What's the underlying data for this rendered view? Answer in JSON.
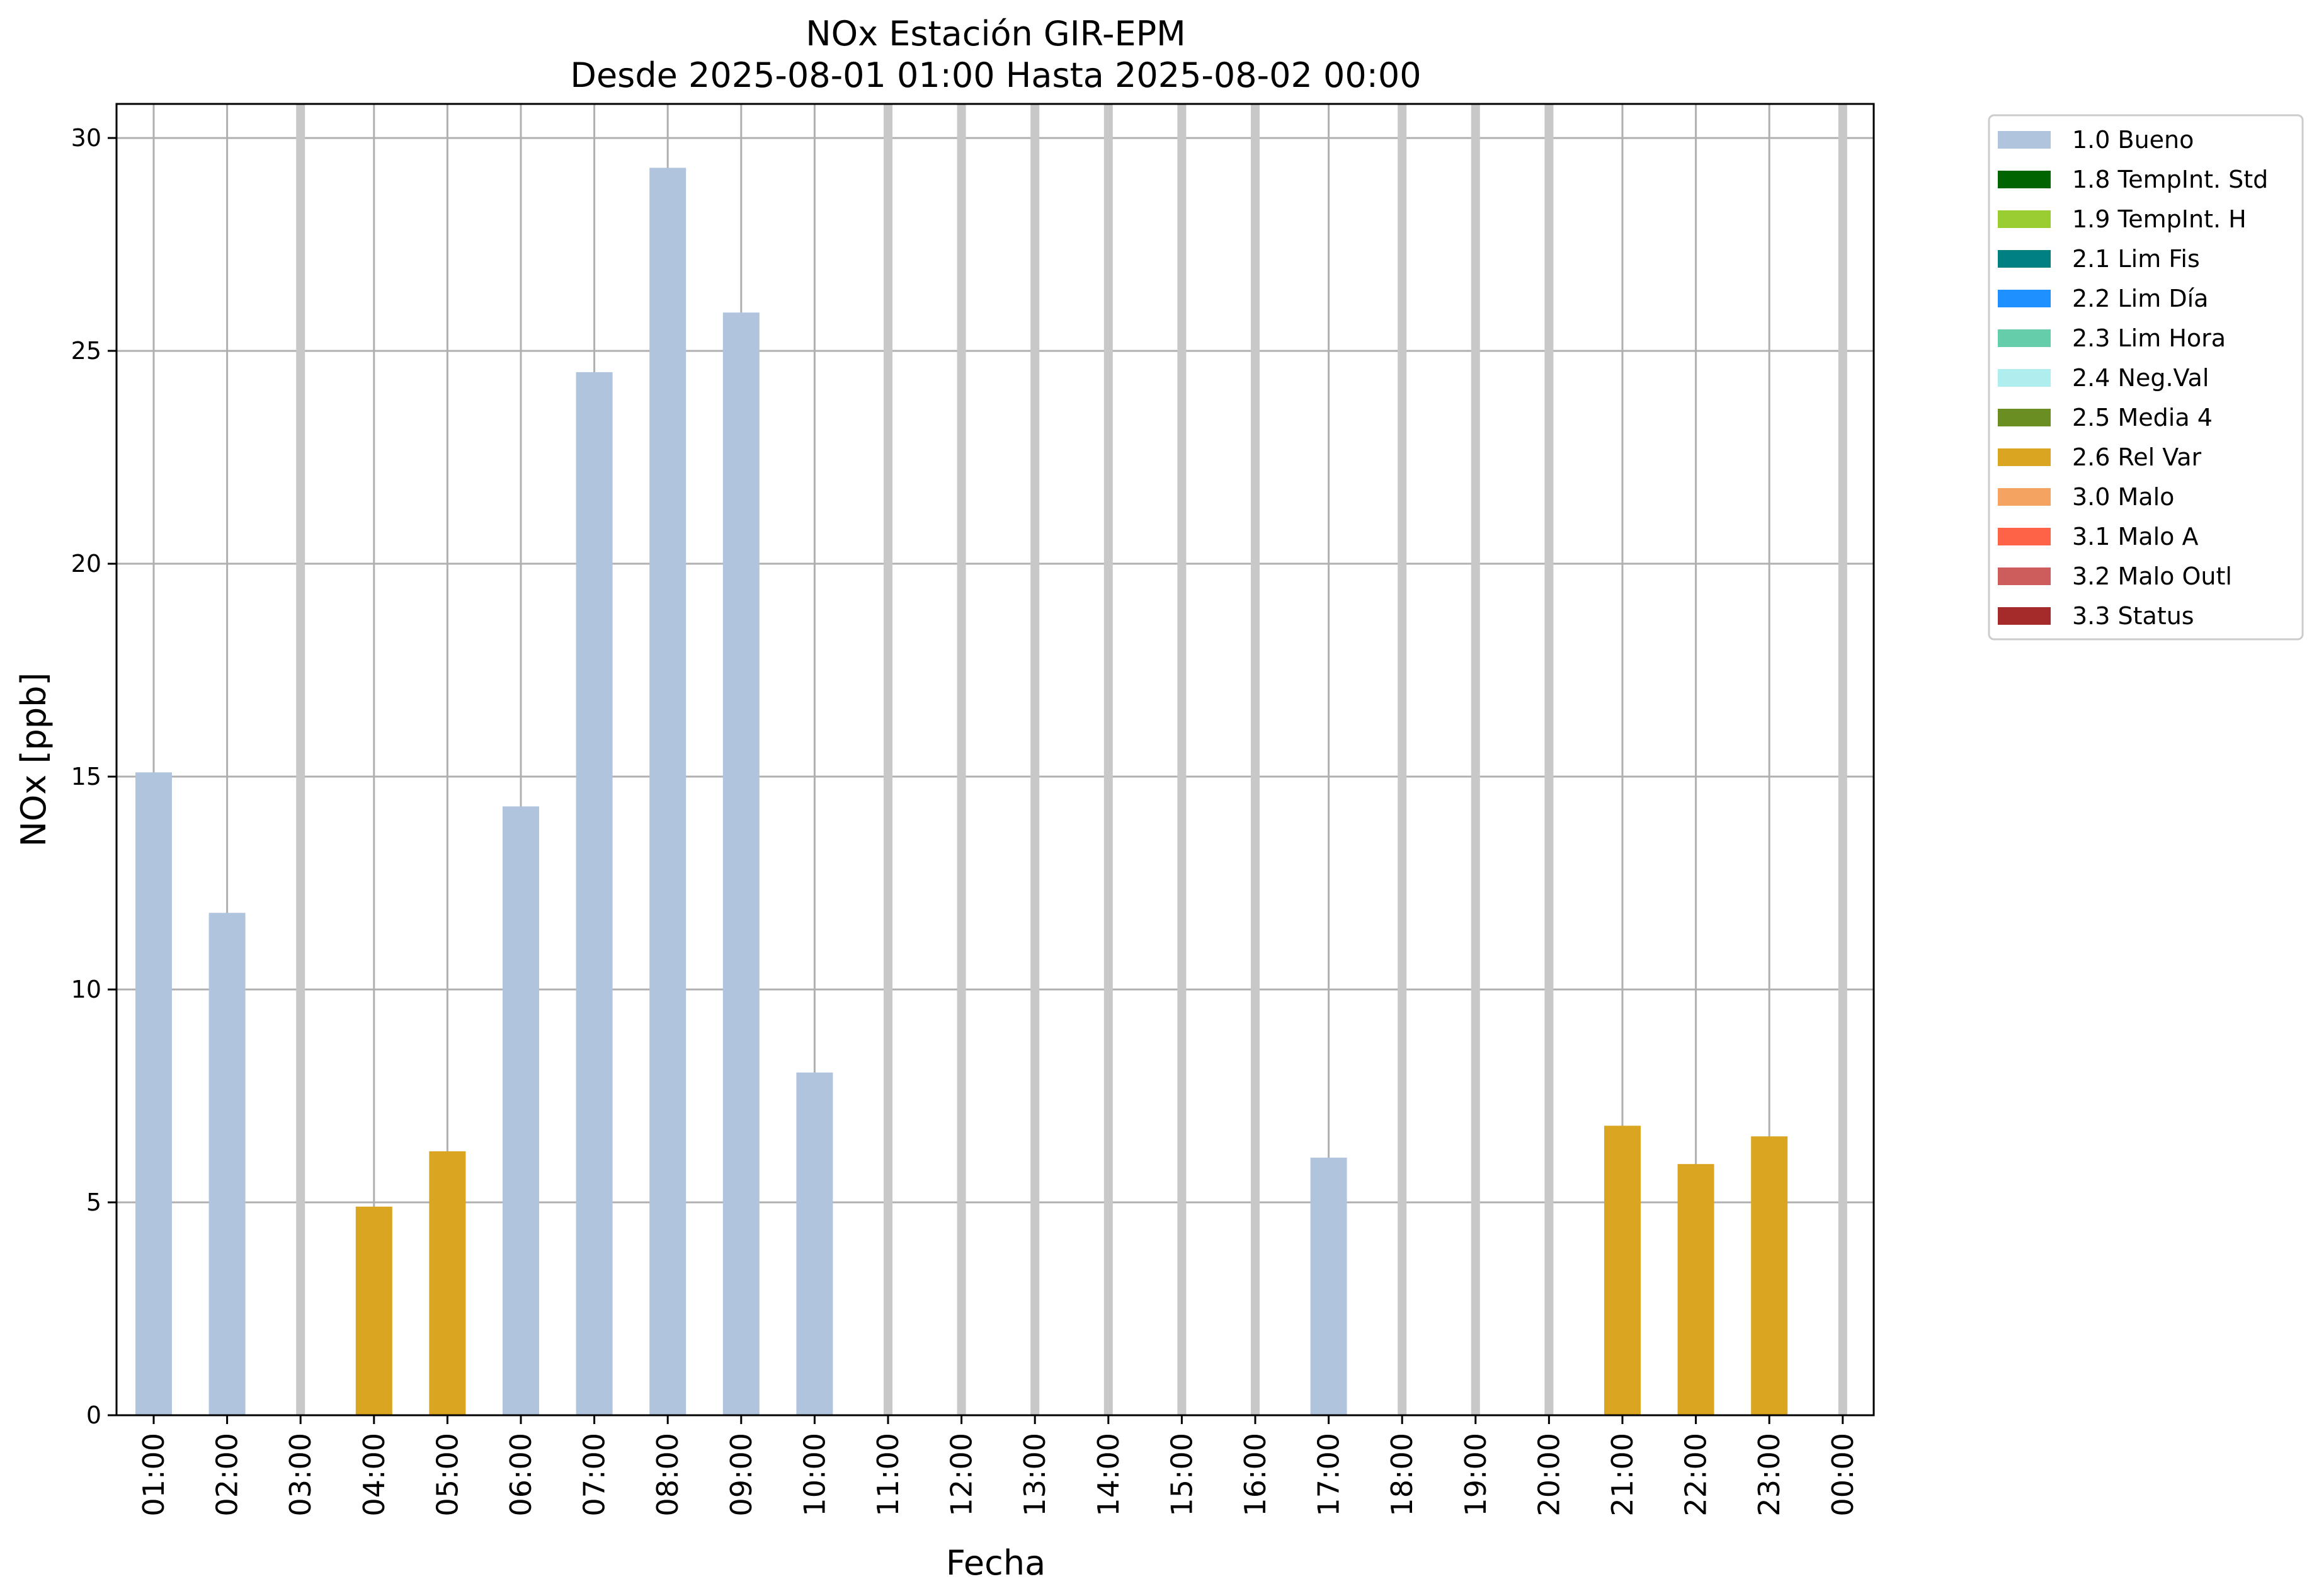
{
  "chart_data": {
    "type": "bar",
    "title": "NOx Estación GIR-EPM",
    "subtitle": "Desde 2025-08-01 01:00 Hasta 2025-08-02 00:00",
    "xlabel": "Fecha",
    "ylabel": "NOx [ppb]",
    "ylim": [
      0,
      30.8
    ],
    "yticks": [
      0,
      5,
      10,
      15,
      20,
      25,
      30
    ],
    "grid": true,
    "legend_position": "outside-top-right",
    "categories": [
      "01:00",
      "02:00",
      "03:00",
      "04:00",
      "05:00",
      "06:00",
      "07:00",
      "08:00",
      "09:00",
      "10:00",
      "11:00",
      "12:00",
      "13:00",
      "14:00",
      "15:00",
      "16:00",
      "17:00",
      "18:00",
      "19:00",
      "20:00",
      "21:00",
      "22:00",
      "23:00",
      "00:00"
    ],
    "values": [
      15.1,
      11.8,
      null,
      4.9,
      6.2,
      14.3,
      24.5,
      29.3,
      25.9,
      8.05,
      null,
      null,
      null,
      null,
      null,
      null,
      6.05,
      null,
      null,
      null,
      6.8,
      5.9,
      6.55,
      null
    ],
    "flags": [
      "1.0 Bueno",
      "1.0 Bueno",
      null,
      "2.6 Rel Var",
      "2.6 Rel Var",
      "1.0 Bueno",
      "1.0 Bueno",
      "1.0 Bueno",
      "1.0 Bueno",
      "1.0 Bueno",
      null,
      null,
      null,
      null,
      null,
      null,
      "1.0 Bueno",
      null,
      null,
      null,
      "2.6 Rel Var",
      "2.6 Rel Var",
      "2.6 Rel Var",
      null
    ],
    "legend": [
      {
        "label": "1.0 Bueno",
        "color": "#b0c4de"
      },
      {
        "label": "1.8 TempInt. Std",
        "color": "#006400"
      },
      {
        "label": "1.9 TempInt. H",
        "color": "#9acd32"
      },
      {
        "label": "2.1 Lim Fis",
        "color": "#008080"
      },
      {
        "label": "2.2 Lim Día",
        "color": "#1e90ff"
      },
      {
        "label": "2.3 Lim Hora",
        "color": "#66cdaa"
      },
      {
        "label": "2.4 Neg.Val",
        "color": "#afeeee"
      },
      {
        "label": "2.5 Media 4",
        "color": "#6b8e23"
      },
      {
        "label": "2.6 Rel Var",
        "color": "#daa520"
      },
      {
        "label": "3.0 Malo",
        "color": "#f4a460"
      },
      {
        "label": "3.1 Malo A",
        "color": "#ff6347"
      },
      {
        "label": "3.2 Malo Outl",
        "color": "#cd5c5c"
      },
      {
        "label": "3.3 Status",
        "color": "#a52a2a"
      }
    ]
  }
}
